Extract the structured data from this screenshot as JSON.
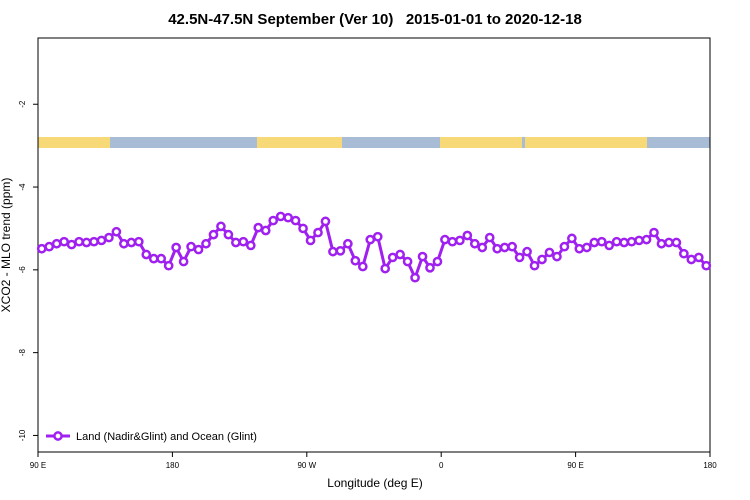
{
  "chart_data": {
    "type": "line",
    "title": "42.5N-47.5N September (Ver 10)   2015-01-01 to 2020-12-18",
    "x_label": "Longitude (deg E)",
    "y_label": "XCO2 - MLO trend (ppm)",
    "xlim": [
      90,
      540
    ],
    "xticks": [
      {
        "value": 90,
        "label": "90 E"
      },
      180,
      {
        "value": 270,
        "label": "90 W"
      },
      {
        "value": 360,
        "label": "0"
      },
      {
        "value": 450,
        "label": "90 E"
      },
      {
        "value": 540,
        "label": "180"
      }
    ],
    "ylim": [
      -10.4,
      -0.4
    ],
    "yticks": [
      -10,
      -8,
      -6,
      -4,
      -2
    ],
    "grid": false,
    "legend": "lower left",
    "x": [
      92.5,
      97.5,
      102.5,
      107.5,
      112.5,
      117.5,
      122.5,
      127.5,
      132.5,
      137.5,
      142.5,
      147.5,
      152.5,
      157.5,
      162.5,
      167.5,
      172.5,
      177.5,
      182.5,
      187.5,
      192.5,
      197.5,
      202.5,
      207.5,
      212.5,
      217.5,
      222.5,
      227.5,
      232.5,
      237.5,
      242.5,
      247.5,
      252.5,
      257.5,
      262.5,
      267.5,
      272.5,
      277.5,
      282.5,
      287.5,
      292.5,
      297.5,
      302.5,
      307.5,
      312.5,
      317.5,
      322.5,
      327.5,
      332.5,
      337.5,
      342.5,
      347.5,
      352.5,
      357.5,
      362.5,
      367.5,
      372.5,
      377.5,
      382.5,
      387.5,
      392.5,
      397.5,
      402.5,
      407.5,
      412.5,
      417.5,
      422.5,
      427.5,
      432.5,
      437.5,
      442.5,
      447.5,
      452.5,
      457.5,
      462.5,
      467.5,
      472.5,
      477.5,
      482.5,
      487.5,
      492.5,
      497.5,
      502.5,
      507.5,
      512.5,
      517.5,
      522.5,
      527.5,
      532.5,
      537.5
    ],
    "series": [
      {
        "name": "Land (Nadir&Glint) and Ocean (Glint)",
        "color": "#a020f0",
        "values": [
          -5.49,
          -5.44,
          -5.37,
          -5.32,
          -5.39,
          -5.32,
          -5.34,
          -5.32,
          -5.29,
          -5.22,
          -5.08,
          -5.37,
          -5.34,
          -5.32,
          -5.63,
          -5.73,
          -5.73,
          -5.9,
          -5.46,
          -5.8,
          -5.44,
          -5.51,
          -5.37,
          -5.15,
          -4.95,
          -5.15,
          -5.34,
          -5.32,
          -5.41,
          -4.98,
          -5.05,
          -4.81,
          -4.71,
          -4.74,
          -4.81,
          -5.0,
          -5.29,
          -5.1,
          -4.83,
          -5.56,
          -5.54,
          -5.37,
          -5.78,
          -5.92,
          -5.27,
          -5.2,
          -5.97,
          -5.7,
          -5.63,
          -5.8,
          -6.19,
          -5.68,
          -5.95,
          -5.8,
          -5.27,
          -5.32,
          -5.29,
          -5.17,
          -5.37,
          -5.46,
          -5.22,
          -5.49,
          -5.46,
          -5.44,
          -5.7,
          -5.56,
          -5.9,
          -5.75,
          -5.58,
          -5.68,
          -5.44,
          -5.24,
          -5.49,
          -5.46,
          -5.34,
          -5.32,
          -5.41,
          -5.32,
          -5.34,
          -5.32,
          -5.29,
          -5.27,
          -5.1,
          -5.37,
          -5.34,
          -5.34,
          -5.61,
          -5.75,
          -5.7,
          -5.9
        ]
      }
    ]
  }
}
